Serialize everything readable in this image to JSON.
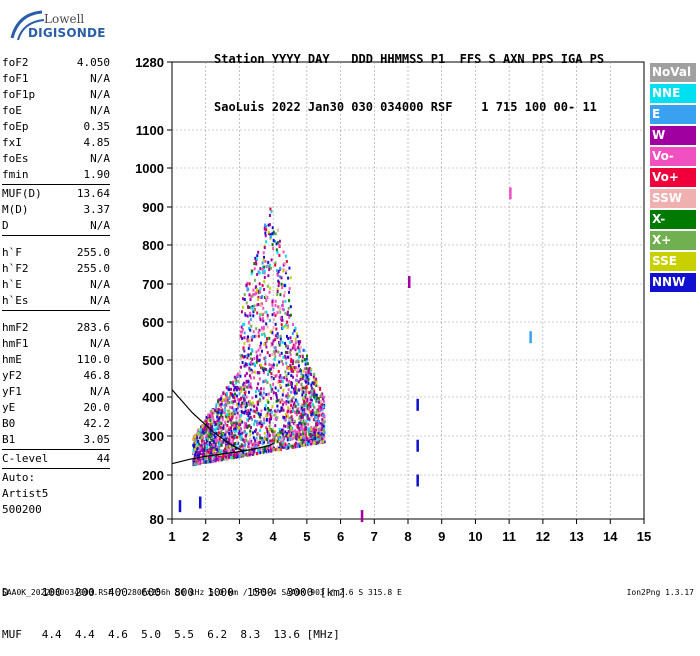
{
  "logo": {
    "line1": "Lowell",
    "line2": "DIGISONDE"
  },
  "header": {
    "row1": "Station YYYY DAY   DDD HHMMSS P1  FFS S AXN PPS IGA PS",
    "row2": "SaoLuis 2022 Jan30 030 034000 RSF    1 715 100 00- 11"
  },
  "params": {
    "group1": [
      {
        "label": "foF2",
        "value": "4.050"
      },
      {
        "label": "foF1",
        "value": "N/A"
      },
      {
        "label": "foF1p",
        "value": "N/A"
      },
      {
        "label": "foE",
        "value": "N/A"
      },
      {
        "label": "foEp",
        "value": "0.35"
      },
      {
        "label": "fxI",
        "value": "4.85"
      },
      {
        "label": "foEs",
        "value": "N/A"
      },
      {
        "label": "fmin",
        "value": "1.90"
      }
    ],
    "group2": [
      {
        "label": "MUF(D)",
        "value": "13.64"
      },
      {
        "label": "M(D)",
        "value": "3.37"
      },
      {
        "label": "D",
        "value": "N/A"
      }
    ],
    "group3": [
      {
        "label": "h`F",
        "value": "255.0"
      },
      {
        "label": "h`F2",
        "value": "255.0"
      },
      {
        "label": "h`E",
        "value": "N/A"
      },
      {
        "label": "h`Es",
        "value": "N/A"
      }
    ],
    "group4": [
      {
        "label": "hmF2",
        "value": "283.6"
      },
      {
        "label": "hmF1",
        "value": "N/A"
      },
      {
        "label": "hmE",
        "value": "110.0"
      },
      {
        "label": "yF2",
        "value": "46.8"
      },
      {
        "label": "yF1",
        "value": "N/A"
      },
      {
        "label": "yE",
        "value": "20.0"
      },
      {
        "label": "B0",
        "value": "42.2"
      },
      {
        "label": "B1",
        "value": "3.05"
      }
    ],
    "clevel": {
      "label": "C-level",
      "value": "44"
    },
    "auto": [
      "Auto:",
      "Artist5",
      "500200"
    ]
  },
  "legend": [
    {
      "label": "NoVal",
      "color": "#a0a0a0"
    },
    {
      "label": "NNE",
      "color": "#00e0f0"
    },
    {
      "label": "E",
      "color": "#3aa0f0"
    },
    {
      "label": "W",
      "color": "#a000a0"
    },
    {
      "label": "Vo-",
      "color": "#f050c0"
    },
    {
      "label": "Vo+",
      "color": "#f0003a"
    },
    {
      "label": "SSW",
      "color": "#f0b0b0"
    },
    {
      "label": "X-",
      "color": "#007a00"
    },
    {
      "label": "X+",
      "color": "#70b050"
    },
    {
      "label": "SSE",
      "color": "#c8d000"
    },
    {
      "label": "NNW",
      "color": "#1010d0"
    }
  ],
  "bottom": {
    "row1": "D     100  200  400  600  800  1000  1500  3000 [km]",
    "row2": "MUF   4.4  4.4  4.6  5.0  5.5  6.2  8.3  13.6 [MHz]"
  },
  "footer": "SAA0K_2022030034000.RSF / 280fx256h 50 kHz 5.0 km / DPS-4 SAA0K 903 / 2.6 S 315.8 E",
  "version": "Ion2Png 1.3.17",
  "chart_data": {
    "type": "scatter",
    "title": "",
    "xlabel": "",
    "ylabel": "",
    "xlim": [
      1,
      15
    ],
    "ylim": [
      80,
      1280
    ],
    "x_ticks": [
      1,
      2,
      3,
      4,
      5,
      6,
      7,
      8,
      9,
      10,
      11,
      12,
      13,
      14,
      15
    ],
    "y_ticks": [
      80,
      200,
      300,
      400,
      500,
      600,
      700,
      800,
      900,
      1000,
      1100,
      1280
    ],
    "grid": true,
    "legend_placement": "right",
    "o_trace_profile": {
      "name": "",
      "x": [
        1.0,
        1.5,
        2.0,
        2.5,
        3.0,
        3.5,
        3.9,
        4.05
      ],
      "y": [
        229,
        240,
        248,
        254,
        260,
        268,
        276,
        283
      ]
    },
    "hf2_curve": {
      "name": "",
      "x": [
        1.0,
        1.6,
        2.2,
        2.7,
        3.1
      ],
      "y": [
        420,
        360,
        312,
        280,
        262
      ]
    },
    "echo_clusters": [
      {
        "x": 8.25,
        "y": 380,
        "series": "NNW"
      },
      {
        "x": 8.25,
        "y": 275,
        "series": "NNW"
      },
      {
        "x": 8.25,
        "y": 185,
        "series": "NNW"
      },
      {
        "x": 8.0,
        "y": 705,
        "series": "W"
      },
      {
        "x": 11.0,
        "y": 935,
        "series": "Vo-"
      },
      {
        "x": 6.6,
        "y": 88,
        "series": "W"
      },
      {
        "x": 11.6,
        "y": 560,
        "series": "E"
      },
      {
        "x": 1.2,
        "y": 115,
        "series": "NNW"
      },
      {
        "x": 1.8,
        "y": 125,
        "series": "NNW"
      }
    ]
  }
}
